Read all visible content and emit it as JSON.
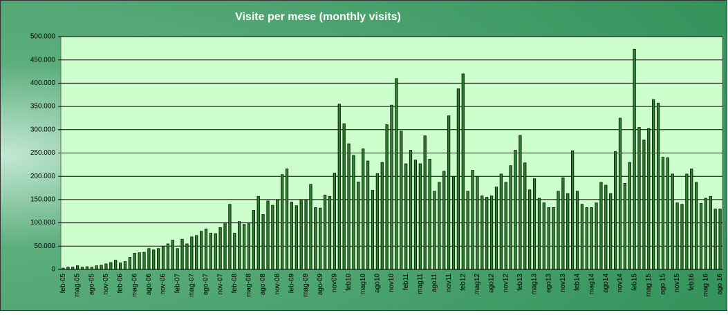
{
  "chart_data": {
    "type": "bar",
    "title": "Visite per mese (monthly visits)",
    "categories": [
      "feb-05",
      null,
      null,
      "mag-05",
      null,
      null,
      "ago-05",
      null,
      null,
      "nov-05",
      null,
      null,
      "feb-06",
      null,
      null,
      "mag-06",
      null,
      null,
      "ago-06",
      null,
      null,
      "nov-06",
      null,
      null,
      "feb-07",
      null,
      null,
      "mag-07",
      null,
      null,
      "ago-07",
      null,
      null,
      "nov-07",
      null,
      null,
      "feb-08",
      null,
      null,
      "mag-08",
      null,
      null,
      "ago-08",
      null,
      null,
      "nov-08",
      null,
      null,
      "feb-09",
      null,
      null,
      "mag-09",
      null,
      null,
      "ago-09",
      null,
      null,
      "nov09",
      null,
      null,
      "feb10",
      null,
      null,
      "mag10",
      null,
      null,
      "ago10",
      null,
      null,
      "nov10",
      null,
      null,
      "feb11",
      null,
      null,
      "mag11",
      null,
      null,
      "ago11",
      null,
      null,
      "nov11",
      null,
      null,
      "feb12",
      null,
      null,
      "mag12",
      null,
      null,
      "ago12",
      null,
      null,
      "nov12",
      null,
      null,
      "feb13",
      null,
      null,
      "mag13",
      null,
      null,
      "ago13",
      null,
      null,
      "nov13",
      null,
      null,
      "feb14",
      null,
      null,
      "mag14",
      null,
      null,
      "ago14",
      null,
      null,
      "nov14",
      null,
      null,
      "feb15",
      null,
      null,
      "mag 15",
      null,
      null,
      "ago 15",
      null,
      null,
      "nov15",
      null,
      null,
      "feb16",
      null,
      null,
      "mag 16",
      null,
      null,
      "ago 16"
    ],
    "values": [
      3000,
      5000,
      5000,
      8000,
      5000,
      6000,
      5000,
      8000,
      9000,
      12000,
      15000,
      20000,
      14000,
      17000,
      26000,
      35000,
      36000,
      37000,
      45000,
      42000,
      45000,
      50000,
      55000,
      63000,
      45000,
      65000,
      55000,
      70000,
      73000,
      82000,
      87000,
      78000,
      77000,
      90000,
      100000,
      140000,
      78000,
      103000,
      97000,
      100000,
      127000,
      157000,
      118000,
      147000,
      138000,
      150000,
      204000,
      216000,
      145000,
      137000,
      150000,
      150000,
      183000,
      133000,
      132000,
      160000,
      157000,
      207000,
      355000,
      313000,
      270000,
      245000,
      188000,
      259000,
      233000,
      170000,
      206000,
      230000,
      311000,
      353000,
      410000,
      297000,
      227000,
      256000,
      235000,
      227000,
      287000,
      237000,
      168000,
      187000,
      211000,
      330000,
      200000,
      388000,
      420000,
      168000,
      213000,
      200000,
      158000,
      155000,
      158000,
      177000,
      205000,
      187000,
      223000,
      256000,
      288000,
      229000,
      171000,
      195000,
      153000,
      143000,
      133000,
      133000,
      168000,
      197000,
      163000,
      255000,
      168000,
      140000,
      133000,
      133000,
      143000,
      187000,
      181000,
      163000,
      253000,
      325000,
      185000,
      230000,
      473000,
      305000,
      278000,
      303000,
      365000,
      357000,
      241000,
      240000,
      205000,
      143000,
      140000,
      205000,
      216000,
      187000,
      142000,
      153000,
      157000,
      130000,
      130000
    ],
    "color": "#1f6b1f",
    "ylim": [
      0,
      500000
    ],
    "yticks": [
      0,
      {
        "value": 50000,
        "label": "50.000"
      },
      {
        "value": 100000,
        "label": "100.000"
      },
      {
        "value": 150000,
        "label": "150.000"
      },
      {
        "value": 200000,
        "label": "200.000"
      },
      {
        "value": 250000,
        "label": "250.000"
      },
      {
        "value": 300000,
        "label": "300.000"
      },
      {
        "value": 350000,
        "label": "350.000"
      },
      {
        "value": 400000,
        "label": "400.000"
      },
      {
        "value": 450000,
        "label": "450.000"
      },
      {
        "value": 500000,
        "label": "500.000"
      }
    ],
    "grid": true
  }
}
